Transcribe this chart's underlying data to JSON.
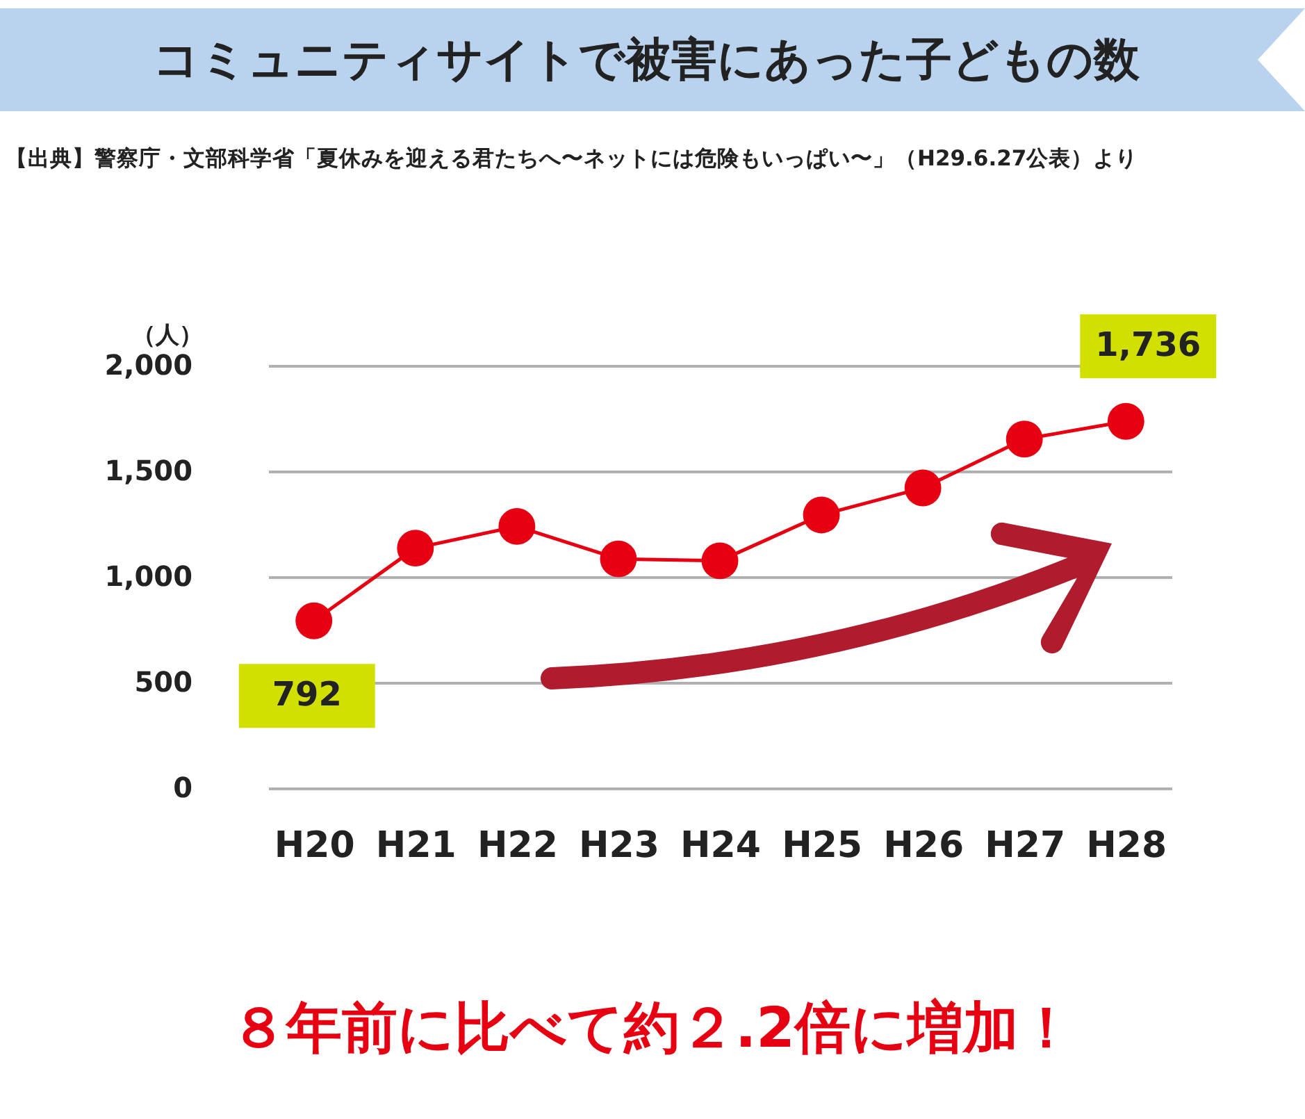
{
  "chart_data": {
    "type": "line",
    "title": "コミュニティサイトで被害にあった子どもの数",
    "subtitle": "【出典】警察庁・文部科学省「夏休みを迎える君たちへ〜ネットには危険もいっぱい〜」（H29.6.27公表）より",
    "ylabel": "（人）",
    "annotations": [
      "８年前に比べて約２.2倍に増加！"
    ],
    "categories": [
      "H20",
      "H21",
      "H22",
      "H23",
      "H24",
      "H25",
      "H26",
      "H27",
      "H28"
    ],
    "series": [
      {
        "color": "#e60012",
        "values": [
          792,
          1136,
          1239,
          1085,
          1076,
          1293,
          1421,
          1652,
          1736
        ],
        "value_labels": [
          "792",
          null,
          null,
          null,
          null,
          null,
          null,
          null,
          "1,736"
        ]
      }
    ],
    "ylim": [
      0,
      2000
    ],
    "yticks": [
      0,
      500,
      {
        "value": 1000,
        "label": "1,000"
      },
      {
        "value": 1500,
        "label": "1,500"
      },
      {
        "value": 2000,
        "label": "2,000"
      }
    ],
    "grid": "y",
    "marker": "circle",
    "line_style": "solid"
  }
}
